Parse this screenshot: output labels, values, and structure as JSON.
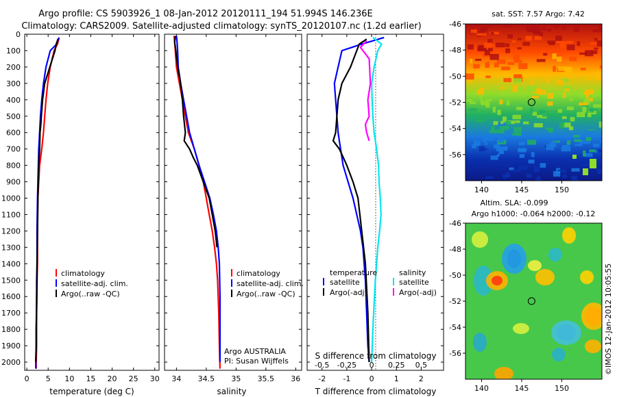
{
  "header": {
    "title_line1": "Argo profile: CS 5903926_1 08-Jan-2012 20120111_194 51.994S 146.236E",
    "title_line2": "Climatology: CARS2009. Satellite-adjusted climatology: synTS_20120107.nc (1.2d earlier)"
  },
  "watermark": "©IMOS 12-Jan-2012 10:05:55",
  "colors": {
    "climatology": "#ff0000",
    "satellite": "#0000ff",
    "argo": "#000000",
    "satellite_sal": "#00e5ee",
    "argo_sal": "#ff00ff"
  },
  "chart_data": [
    {
      "id": "temperature",
      "type": "line",
      "xlabel": "temperature (deg C)",
      "ylabel": "",
      "xlim": [
        -0.5,
        31
      ],
      "ylim": [
        2050,
        0
      ],
      "xticks": [
        0,
        5,
        10,
        15,
        20,
        25,
        30
      ],
      "yticks": [
        0,
        100,
        200,
        300,
        400,
        500,
        600,
        700,
        800,
        900,
        1000,
        1100,
        1200,
        1300,
        1400,
        1500,
        1600,
        1700,
        1800,
        1900,
        2000
      ],
      "legend": [
        "climatology",
        "satellite-adj. clim.",
        "Argo(..raw -QC)"
      ],
      "series": [
        {
          "name": "climatology",
          "color": "#ff0000",
          "x": [
            7.6,
            7.2,
            6.4,
            5.5,
            4.9,
            4.5,
            4.2,
            3.9,
            3.5,
            3.0,
            2.8,
            2.6,
            2.5,
            2.5,
            2.4,
            2.4,
            2.3,
            2.3,
            2.3,
            2.2,
            2.2
          ],
          "y": [
            20,
            60,
            100,
            200,
            300,
            400,
            500,
            600,
            700,
            800,
            900,
            1000,
            1200,
            1400,
            1500,
            1600,
            1700,
            1800,
            1900,
            2000,
            2040
          ]
        },
        {
          "name": "satellite-adj. clim.",
          "color": "#0000ff",
          "x": [
            7.5,
            7.0,
            5.5,
            4.5,
            3.9,
            3.5,
            3.2,
            3.0,
            2.8,
            2.7,
            2.6,
            2.5,
            2.4,
            2.4,
            2.3,
            2.3,
            2.2,
            2.2,
            2.1,
            2.1
          ],
          "y": [
            20,
            60,
            100,
            200,
            300,
            400,
            500,
            600,
            700,
            800,
            900,
            1000,
            1200,
            1400,
            1500,
            1600,
            1800,
            1900,
            2000,
            2040
          ]
        },
        {
          "name": "Argo(..raw -QC)",
          "color": "#000000",
          "x": [
            7.3,
            6.9,
            6.6,
            5.4,
            4.2,
            3.7,
            3.4,
            3.3,
            3.1,
            3.0,
            2.8,
            2.6,
            2.5,
            2.4,
            2.4,
            2.3,
            2.3,
            2.2,
            2.2,
            2.1
          ],
          "y": [
            30,
            60,
            100,
            200,
            300,
            400,
            500,
            550,
            600,
            700,
            800,
            1000,
            1200,
            1400,
            1500,
            1600,
            1700,
            1800,
            1900,
            2000
          ]
        }
      ]
    },
    {
      "id": "salinity",
      "type": "line",
      "xlabel": "salinity",
      "ylabel": "",
      "xlim": [
        33.8,
        36.1
      ],
      "ylim": [
        2050,
        0
      ],
      "xticks": [
        34,
        34.5,
        35,
        35.5,
        36
      ],
      "legend": [
        "climatology",
        "satellite-adj. clim.",
        "Argo(..raw -QC)"
      ],
      "annotation_line1": "Argo AUSTRALIA",
      "annotation_line2": "PI: Susan Wijffels",
      "series": [
        {
          "name": "climatology",
          "color": "#ff0000",
          "x": [
            33.96,
            33.97,
            33.98,
            34.0,
            34.05,
            34.1,
            34.15,
            34.2,
            34.3,
            34.38,
            34.45,
            34.5,
            34.55,
            34.6,
            34.64,
            34.67,
            34.69,
            34.71,
            34.72,
            34.73
          ],
          "y": [
            10,
            50,
            100,
            200,
            300,
            400,
            500,
            600,
            700,
            800,
            900,
            1000,
            1100,
            1200,
            1300,
            1400,
            1500,
            1700,
            1900,
            2040
          ]
        },
        {
          "name": "satellite-adj. clim.",
          "color": "#0000ff",
          "x": [
            34.0,
            34.01,
            34.02,
            34.03,
            34.07,
            34.12,
            34.17,
            34.22,
            34.3,
            34.38,
            34.47,
            34.56,
            34.62,
            34.67,
            34.7,
            34.72,
            34.73,
            34.73
          ],
          "y": [
            10,
            50,
            100,
            200,
            300,
            400,
            500,
            600,
            700,
            800,
            900,
            1000,
            1100,
            1200,
            1300,
            1400,
            1600,
            2000
          ]
        },
        {
          "name": "Argo(..raw -QC)",
          "color": "#000000",
          "x": [
            33.98,
            33.97,
            33.99,
            34.02,
            34.07,
            34.1,
            34.12,
            34.15,
            34.13,
            34.22,
            34.28,
            34.35,
            34.45,
            34.55,
            34.6,
            34.65,
            34.68
          ],
          "y": [
            10,
            50,
            100,
            200,
            300,
            400,
            500,
            600,
            650,
            700,
            750,
            800,
            900,
            1000,
            1100,
            1200,
            1300
          ]
        }
      ]
    },
    {
      "id": "differences",
      "type": "line",
      "xlabel": "T difference from climatology",
      "xlabel_top": "S difference from climatology",
      "xlim": [
        -2.6,
        2.9
      ],
      "ylim": [
        2050,
        0
      ],
      "xticks": [
        -2,
        -1,
        0,
        1,
        2
      ],
      "xticks_salinity": [
        -0.5,
        -0.25,
        0,
        0.25,
        0.5
      ],
      "legend_temperature_title": "temperature",
      "legend_salinity_title": "salinity",
      "legend": [
        "satellite",
        "Argo(-adj)",
        "satellite",
        "Argo(-adj)"
      ],
      "series": [
        {
          "name": "satellite",
          "color": "#0000ff",
          "x": [
            0.5,
            -0.4,
            -1.2,
            -1.35,
            -1.5,
            -1.45,
            -1.4,
            -1.35,
            -1.25,
            -1.15,
            -0.95,
            -0.75,
            -0.6,
            -0.45,
            -0.35,
            -0.25,
            -0.2,
            -0.15,
            -0.1
          ],
          "y": [
            20,
            60,
            100,
            200,
            300,
            400,
            500,
            600,
            700,
            800,
            900,
            1000,
            1100,
            1200,
            1300,
            1500,
            1700,
            1900,
            2000
          ]
        },
        {
          "name": "Argo(-adj)",
          "color": "#000000",
          "x": [
            -0.2,
            -0.5,
            -0.6,
            -0.85,
            -1.2,
            -1.35,
            -1.4,
            -1.45,
            -1.55,
            -1.3,
            -1.15,
            -1.0,
            -0.75,
            -0.55,
            -0.4,
            -0.25,
            -0.15,
            -0.1
          ],
          "y": [
            30,
            60,
            100,
            200,
            300,
            400,
            500,
            600,
            650,
            700,
            750,
            800,
            900,
            1000,
            1200,
            1400,
            1700,
            2000
          ]
        },
        {
          "name": "satellite",
          "color": "#00e5ee",
          "x": [
            0.05,
            0.4,
            0.25,
            0.1,
            0.0,
            0.02,
            0.05,
            0.1,
            0.2,
            0.28,
            0.3,
            0.35,
            0.38,
            0.32,
            0.25,
            0.15,
            0.05,
            0.0
          ],
          "y": [
            20,
            60,
            100,
            200,
            300,
            400,
            500,
            600,
            700,
            800,
            900,
            1000,
            1100,
            1200,
            1300,
            1500,
            1800,
            2000
          ]
        },
        {
          "name": "Argo(-adj)",
          "color": "#ff00ff",
          "x": [
            -0.2,
            -0.45,
            -0.1,
            -0.05,
            -0.15,
            -0.1,
            -0.25,
            -0.2,
            -0.1
          ],
          "y": [
            40,
            80,
            150,
            300,
            400,
            500,
            550,
            600,
            650
          ]
        }
      ]
    },
    {
      "id": "sst_map",
      "type": "heatmap",
      "title": "sat. SST: 7.57 Argo: 7.42",
      "xlim": [
        138,
        155
      ],
      "ylim": [
        -58,
        -46
      ],
      "xticks": [
        140,
        145,
        150
      ],
      "yticks": [
        -46,
        -48,
        -50,
        -52,
        -54,
        -56
      ],
      "marker": {
        "lon": 146.236,
        "lat": -51.994
      }
    },
    {
      "id": "sla_map",
      "type": "heatmap",
      "title_line1": "Altim. SLA: -0.099",
      "title_line2": "Argo h1000: -0.064 h2000: -0.12",
      "xlim": [
        138,
        155
      ],
      "ylim": [
        -58,
        -46
      ],
      "xticks": [
        140,
        145,
        150
      ],
      "yticks": [
        -46,
        -48,
        -50,
        -52,
        -54,
        -56
      ],
      "marker": {
        "lon": 146.236,
        "lat": -51.994
      }
    }
  ]
}
